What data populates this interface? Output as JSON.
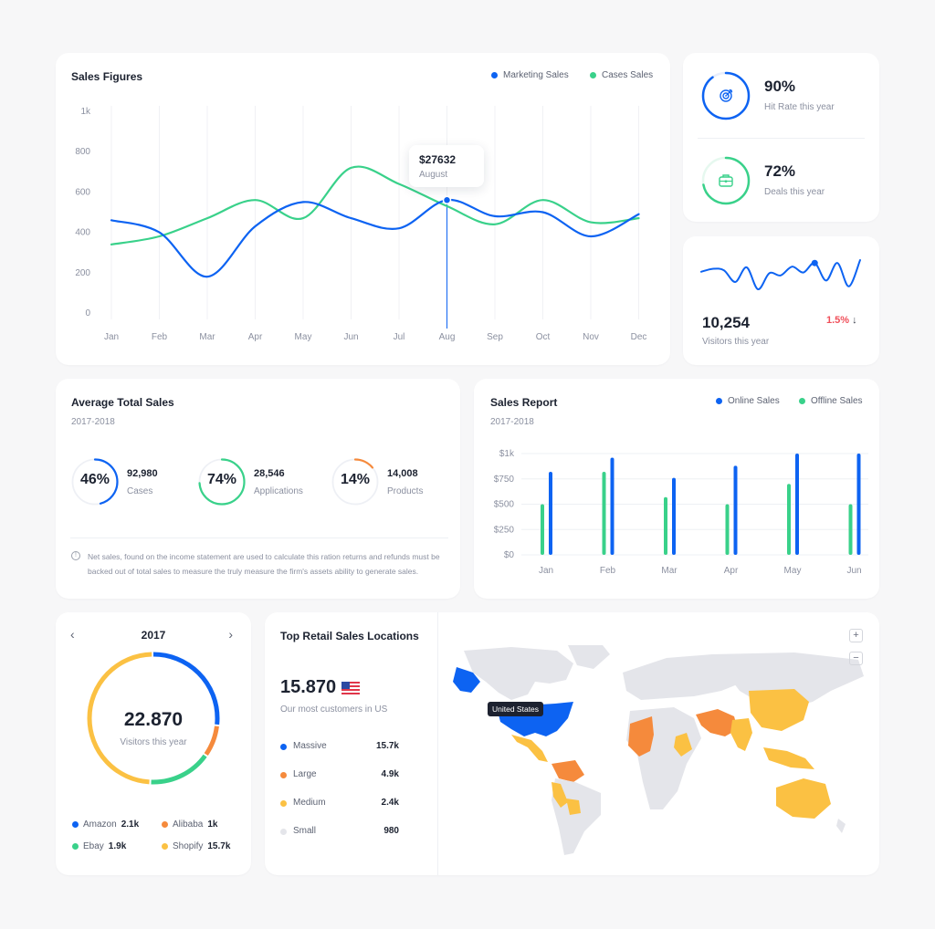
{
  "colors": {
    "blue": "#0d63f2",
    "green": "#39d18a",
    "orange": "#f58a3c",
    "yellow": "#fbc143",
    "gray": "#e4e5ea",
    "red": "#f04f5a"
  },
  "sales_figures": {
    "title": "Sales Figures",
    "legend": [
      {
        "name": "Marketing Sales",
        "color": "#0d63f2"
      },
      {
        "name": "Cases Sales",
        "color": "#39d18a"
      }
    ],
    "tooltip": {
      "value": "$27632",
      "label": "August"
    }
  },
  "hit_rate": {
    "value": "90%",
    "label": "Hit Rate this year",
    "percent": 90,
    "icon": "target-icon"
  },
  "deals": {
    "value": "72%",
    "label": "Deals this year",
    "percent": 72,
    "icon": "briefcase-icon"
  },
  "visitors_small": {
    "value": "10,254",
    "label": "Visitors this year",
    "change": "1.5%",
    "direction": "down"
  },
  "avg_sales": {
    "title": "Average Total Sales",
    "period": "2017-2018",
    "metrics": [
      {
        "percent_label": "46%",
        "percent": 46,
        "value": "92,980",
        "label": "Cases",
        "color": "#0d63f2"
      },
      {
        "percent_label": "74%",
        "percent": 74,
        "value": "28,546",
        "label": "Applications",
        "color": "#39d18a"
      },
      {
        "percent_label": "14%",
        "percent": 14,
        "value": "14,008",
        "label": "Products",
        "color": "#f58a3c"
      }
    ],
    "note": "Net sales, found on the income statement are used to calculate this ration returns and refunds must be backed out of total sales to measure the truly measure the firm's assets ability to generate sales."
  },
  "sales_report": {
    "title": "Sales Report",
    "period": "2017-2018",
    "legend": [
      {
        "name": "Online Sales",
        "color": "#0d63f2"
      },
      {
        "name": "Offline Sales",
        "color": "#39d18a"
      }
    ]
  },
  "year_donut": {
    "year": "2017",
    "value": "22.870",
    "label": "Visitors this year",
    "segments": [
      {
        "name": "Amazon",
        "value": "2.1k",
        "color": "#0d63f2",
        "share": 0.27
      },
      {
        "name": "Alibaba",
        "value": "1k",
        "color": "#f58a3c",
        "share": 0.08
      },
      {
        "name": "Ebay",
        "value": "1.9k",
        "color": "#39d18a",
        "share": 0.16
      },
      {
        "name": "Shopify",
        "value": "15.7k",
        "color": "#fbc143",
        "share": 0.49
      }
    ]
  },
  "retail": {
    "title": "Top Retail Sales Locations",
    "value": "15.870",
    "subtitle": "Our most customers in US",
    "tiers": [
      {
        "name": "Massive",
        "value": "15.7k",
        "color": "#0d63f2"
      },
      {
        "name": "Large",
        "value": "4.9k",
        "color": "#f58a3c"
      },
      {
        "name": "Medium",
        "value": "2.4k",
        "color": "#fbc143"
      },
      {
        "name": "Small",
        "value": "980",
        "color": "#e4e5ea"
      }
    ],
    "map_tooltip": "United States",
    "zoom_in": "+",
    "zoom_out": "−"
  },
  "chart_data": [
    {
      "type": "line",
      "title": "Sales Figures",
      "categories": [
        "Jan",
        "Feb",
        "Mar",
        "Apr",
        "May",
        "Jun",
        "Jul",
        "Aug",
        "Sep",
        "Oct",
        "Nov",
        "Dec"
      ],
      "ylim": [
        0,
        1000
      ],
      "yticks": [
        "0",
        "200",
        "400",
        "600",
        "800",
        "1k"
      ],
      "grid": "vertical",
      "series": [
        {
          "name": "Marketing Sales",
          "color": "#0d63f2",
          "values": [
            460,
            400,
            180,
            430,
            550,
            470,
            420,
            560,
            480,
            500,
            380,
            490
          ]
        },
        {
          "name": "Cases Sales",
          "color": "#39d18a",
          "values": [
            340,
            380,
            470,
            560,
            470,
            720,
            640,
            530,
            440,
            560,
            450,
            470
          ]
        }
      ]
    },
    {
      "type": "bar",
      "title": "Sales Report",
      "categories": [
        "Jan",
        "Feb",
        "Mar",
        "Apr",
        "May",
        "Jun"
      ],
      "ylim": [
        0,
        1000
      ],
      "yticks": [
        "$0",
        "$250",
        "$500",
        "$750",
        "$1k"
      ],
      "series": [
        {
          "name": "Offline Sales",
          "color": "#39d18a",
          "values": [
            500,
            820,
            570,
            500,
            700,
            500
          ]
        },
        {
          "name": "Online Sales",
          "color": "#0d63f2",
          "values": [
            820,
            960,
            760,
            880,
            1000,
            1000
          ]
        }
      ]
    },
    {
      "type": "line",
      "title": "Visitors this year",
      "values": [
        54,
        58,
        56,
        40,
        60,
        30,
        52,
        49,
        61,
        53,
        66,
        42,
        66,
        34,
        70
      ]
    }
  ]
}
